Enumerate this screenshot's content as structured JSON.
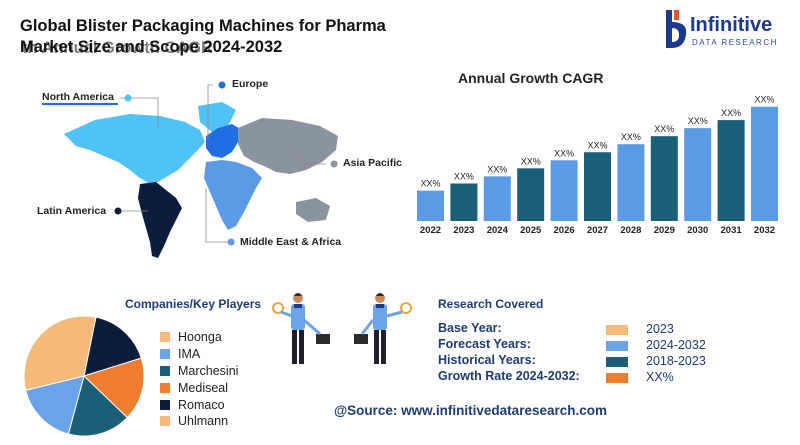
{
  "header": {
    "title_line1": "Global Blister Packaging Machines for Pharma",
    "title_line2": "Market Size and Scope 2024-2032",
    "title_line2_overlap": "th Annual Growth CAGR"
  },
  "logo": {
    "name": "Infinitive",
    "sub": "DATA RESEARCH",
    "brand_color": "#1b3a8c",
    "accent_color": "#e8532b"
  },
  "map": {
    "regions": [
      {
        "name": "North America",
        "color": "#4fc3f7"
      },
      {
        "name": "Europe",
        "color": "#1f6fe0"
      },
      {
        "name": "Asia Pacific",
        "color": "#8a94a0"
      },
      {
        "name": "Latin America",
        "color": "#0b1c3d"
      },
      {
        "name": "Middle East & Africa",
        "color": "#5b9be6"
      }
    ]
  },
  "chart_data": [
    {
      "type": "bar",
      "title": "Annual Growth CAGR",
      "categories": [
        "2022",
        "2023",
        "2024",
        "2025",
        "2026",
        "2027",
        "2028",
        "2029",
        "2030",
        "2031",
        "2032"
      ],
      "data_labels": [
        "XX%",
        "XX%",
        "XX%",
        "XX%",
        "XX%",
        "XX%",
        "XX%",
        "XX%",
        "XX%",
        "XX%",
        "XX%"
      ],
      "values": [
        34,
        42,
        50,
        59,
        68,
        77,
        86,
        95,
        104,
        113,
        128
      ],
      "colors": [
        "#5b9be6",
        "#1b5e78",
        "#5b9be6",
        "#1b5e78",
        "#5b9be6",
        "#1b5e78",
        "#5b9be6",
        "#1b5e78",
        "#5b9be6",
        "#1b5e78",
        "#5b9be6"
      ],
      "ylim": [
        0,
        140
      ],
      "grid": false
    },
    {
      "type": "pie",
      "title": "Companies/Key Players",
      "categories": [
        "Hoonga",
        "IMA",
        "Marchesini",
        "Mediseal",
        "Romaco",
        "Uhlmann"
      ],
      "values": [
        18,
        17,
        17,
        17,
        17,
        14
      ],
      "colors": [
        "#f5b97a",
        "#6aa3e8",
        "#1b5e78",
        "#ee7d2e",
        "#0b1c3d",
        "#f5b97a"
      ],
      "legend_position": "right"
    }
  ],
  "players": {
    "heading": "Companies/Key Players",
    "items": [
      {
        "name": "Hoonga",
        "color": "#f5b97a"
      },
      {
        "name": "IMA",
        "color": "#6aa3e8"
      },
      {
        "name": "Marchesini",
        "color": "#1b5e78"
      },
      {
        "name": "Mediseal",
        "color": "#ee7d2e"
      },
      {
        "name": "Romaco",
        "color": "#0b1c3d"
      },
      {
        "name": "Uhlmann",
        "color": "#f5b97a"
      }
    ]
  },
  "research": {
    "heading": "Research Covered",
    "rows": [
      {
        "label": "Base Year:",
        "value": "2023",
        "color": "#f5b97a"
      },
      {
        "label": "Forecast Years:",
        "value": "2024-2032",
        "color": "#6aa3e8"
      },
      {
        "label": "Historical Years:",
        "value": "2018-2023",
        "color": "#1b5e78"
      },
      {
        "label": "Growth Rate 2024-2032:",
        "value": "XX%",
        "color": "#ee7d2e"
      }
    ]
  },
  "source": "@Source: www.infinitivedataresearch.com"
}
